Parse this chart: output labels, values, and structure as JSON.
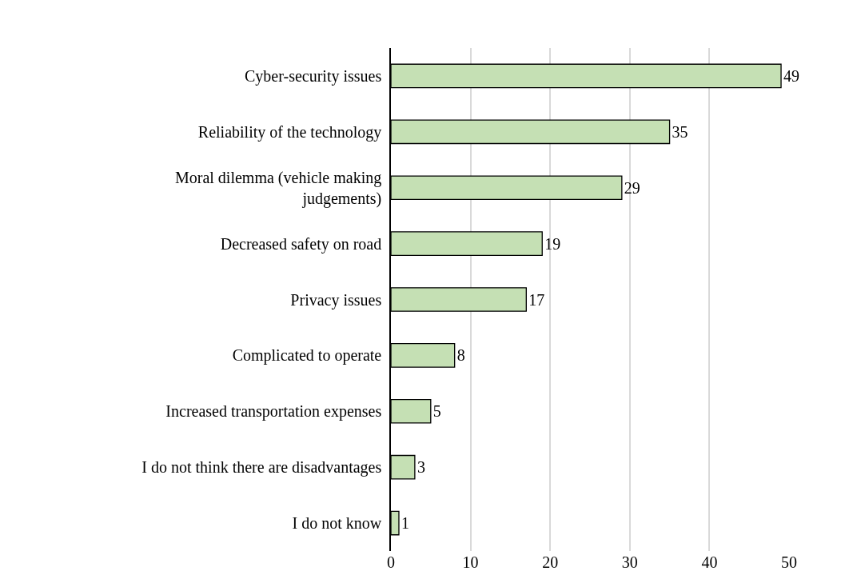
{
  "chart_data": {
    "type": "bar",
    "orientation": "horizontal",
    "categories": [
      "Cyber-security issues",
      "Reliability of the technology",
      "Moral dilemma (vehicle making\njudgements)",
      "Decreased safety on road",
      "Privacy issues",
      "Complicated to operate",
      "Increased transportation expenses",
      "I do not think there are disadvantages",
      "I do not know"
    ],
    "values": [
      49,
      35,
      29,
      19,
      17,
      8,
      5,
      3,
      1
    ],
    "color": "#c5e0b4",
    "xlim": [
      0,
      50
    ],
    "xticks": [
      0,
      10,
      20,
      30,
      40,
      50
    ],
    "grid": "x",
    "data_labels": true,
    "legend": false
  }
}
